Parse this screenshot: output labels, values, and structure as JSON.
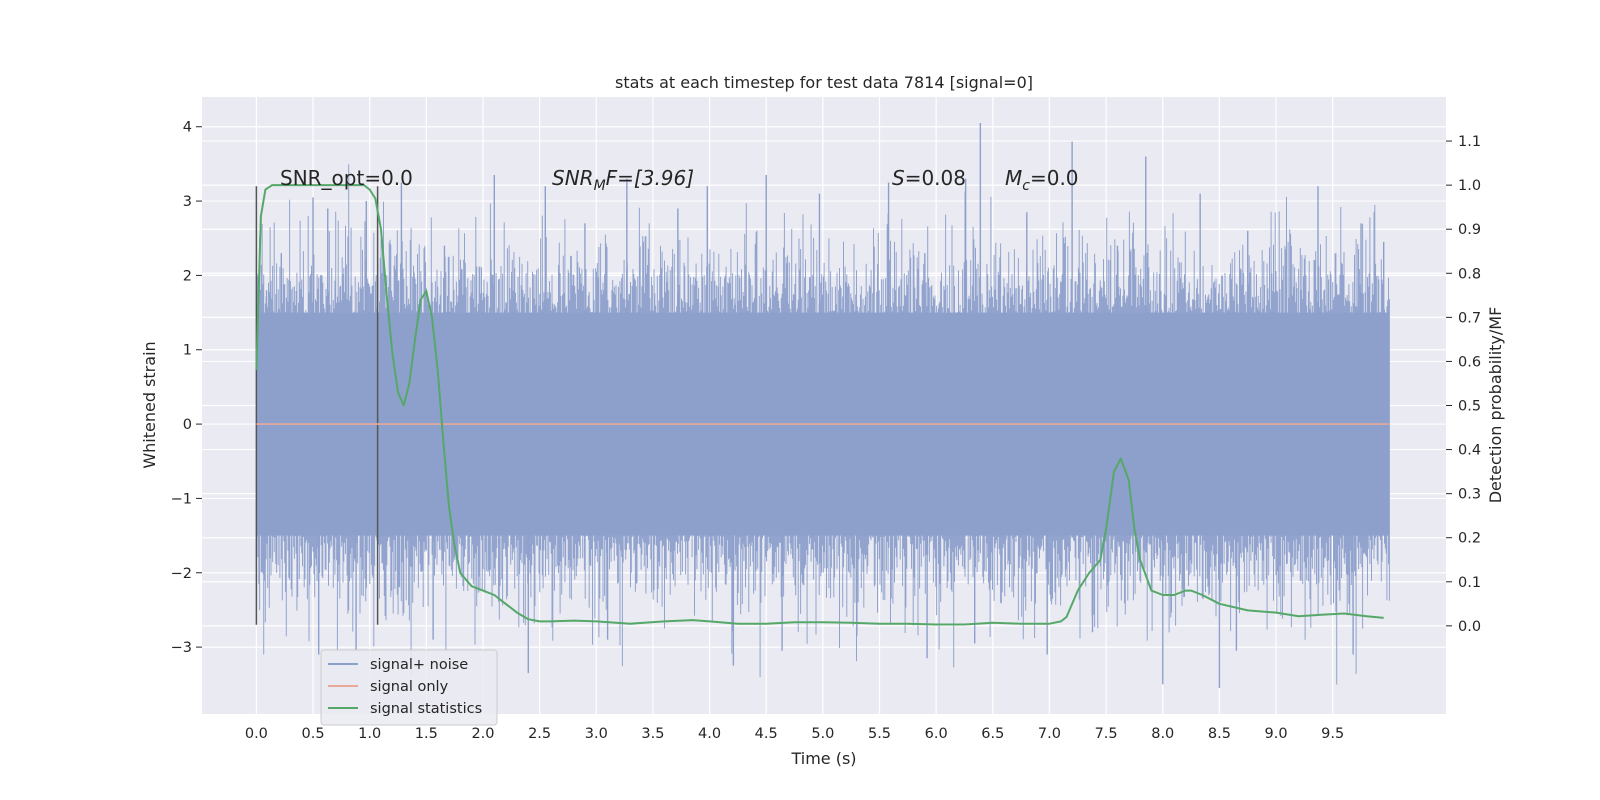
{
  "chart_data": {
    "type": "line",
    "title": "stats at each timestep for test data 7814 [signal=0]",
    "xlabel": "Time (s)",
    "ylabel": "Whitened strain",
    "ylabel_right": "Detection probability/MF",
    "xlim": [
      -0.48,
      10.5
    ],
    "ylim": [
      -3.9,
      4.4
    ],
    "ylim_right": [
      -0.2,
      1.2
    ],
    "x_ticks": [
      "0.0",
      "0.5",
      "1.0",
      "1.5",
      "2.0",
      "2.5",
      "3.0",
      "3.5",
      "4.0",
      "4.5",
      "5.0",
      "5.5",
      "6.0",
      "6.5",
      "7.0",
      "7.5",
      "8.0",
      "8.5",
      "9.0",
      "9.5"
    ],
    "y_ticks": [
      "4",
      "3",
      "2",
      "1",
      "0",
      "−1",
      "−2",
      "−3"
    ],
    "y_ticks_right": [
      "1.1",
      "1.0",
      "0.9",
      "0.8",
      "0.7",
      "0.6",
      "0.5",
      "0.4",
      "0.3",
      "0.2",
      "0.1",
      "0.0"
    ],
    "grid": true,
    "legend_position": "lower-left",
    "annotations": {
      "snr_opt": "SNR_opt=0.0",
      "snr_mf_base": "SNR",
      "snr_mf_sub": "M",
      "snr_mf_rest": "F=[3.96]",
      "s_var": "S",
      "s_rest": "=0.08",
      "mc_base": "M",
      "mc_sub": "c",
      "mc_rest": "=0.0"
    },
    "vertical_markers": {
      "x": [
        0.0,
        1.07
      ],
      "y_range": [
        -2.7,
        3.2
      ],
      "color": "#555555"
    },
    "series": [
      {
        "name": "signal+ noise",
        "color": "#8da0cb",
        "x_range": [
          0.0,
          10.0
        ],
        "band_1sigma": [
          -1.5,
          1.5
        ],
        "peak_min": -3.7,
        "peak_max": 4.05,
        "spikes": [
          {
            "x": 0.09,
            "y": 1.8
          },
          {
            "x": 0.22,
            "y": 2.3
          },
          {
            "x": 0.5,
            "y": 3.05
          },
          {
            "x": 0.63,
            "y": 2.9
          },
          {
            "x": 0.97,
            "y": 3.0
          },
          {
            "x": 1.28,
            "y": 3.25
          },
          {
            "x": 1.66,
            "y": 2.4
          },
          {
            "x": 2.1,
            "y": 3.35
          },
          {
            "x": 2.55,
            "y": 3.2
          },
          {
            "x": 2.9,
            "y": 2.7
          },
          {
            "x": 3.27,
            "y": 3.3
          },
          {
            "x": 3.72,
            "y": 2.9
          },
          {
            "x": 3.98,
            "y": 3.2
          },
          {
            "x": 4.5,
            "y": 3.35
          },
          {
            "x": 4.97,
            "y": 3.1
          },
          {
            "x": 5.58,
            "y": 3.25
          },
          {
            "x": 5.9,
            "y": 2.3
          },
          {
            "x": 6.26,
            "y": 3.3
          },
          {
            "x": 6.39,
            "y": 4.05
          },
          {
            "x": 6.8,
            "y": 2.85
          },
          {
            "x": 7.2,
            "y": 3.8
          },
          {
            "x": 7.6,
            "y": 2.4
          },
          {
            "x": 7.85,
            "y": 3.6
          },
          {
            "x": 8.33,
            "y": 3.1
          },
          {
            "x": 8.75,
            "y": 2.6
          },
          {
            "x": 9.37,
            "y": 3.2
          },
          {
            "x": 9.75,
            "y": 2.7
          },
          {
            "x": 9.95,
            "y": 2.45
          },
          {
            "x": 0.55,
            "y": -3.1
          },
          {
            "x": 0.88,
            "y": -3.05
          },
          {
            "x": 1.56,
            "y": -2.9
          },
          {
            "x": 2.4,
            "y": -3.35
          },
          {
            "x": 4.21,
            "y": -3.25
          },
          {
            "x": 4.64,
            "y": -3.05
          },
          {
            "x": 5.92,
            "y": -3.15
          },
          {
            "x": 6.34,
            "y": -2.95
          },
          {
            "x": 6.98,
            "y": -3.1
          },
          {
            "x": 7.38,
            "y": -2.8
          },
          {
            "x": 8.0,
            "y": -3.5
          },
          {
            "x": 8.5,
            "y": -3.55
          },
          {
            "x": 8.65,
            "y": -3.05
          },
          {
            "x": 9.68,
            "y": -3.1
          },
          {
            "x": 3.1,
            "y": -2.9
          },
          {
            "x": 5.3,
            "y": -2.85
          }
        ]
      },
      {
        "name": "signal only",
        "color": "#e8a99a",
        "x": [
          0.0,
          10.0
        ],
        "y": [
          0.0,
          0.0
        ]
      },
      {
        "name": "signal statistics",
        "color": "#55a868",
        "x": [
          0.0,
          0.04,
          0.08,
          0.14,
          0.22,
          0.3,
          0.5,
          0.7,
          0.85,
          0.95,
          1.0,
          1.05,
          1.1,
          1.15,
          1.2,
          1.25,
          1.3,
          1.35,
          1.4,
          1.45,
          1.5,
          1.55,
          1.6,
          1.65,
          1.7,
          1.75,
          1.8,
          1.9,
          2.0,
          2.1,
          2.2,
          2.3,
          2.4,
          2.5,
          2.6,
          2.8,
          3.0,
          3.3,
          3.6,
          3.85,
          4.0,
          4.25,
          4.5,
          4.75,
          5.0,
          5.25,
          5.5,
          5.75,
          6.0,
          6.25,
          6.5,
          6.75,
          7.0,
          7.1,
          7.15,
          7.25,
          7.35,
          7.45,
          7.5,
          7.57,
          7.63,
          7.7,
          7.75,
          7.8,
          7.9,
          8.0,
          8.1,
          8.2,
          8.25,
          8.35,
          8.5,
          8.75,
          9.0,
          9.2,
          9.4,
          9.6,
          9.8,
          9.95
        ],
        "y": [
          0.58,
          0.93,
          0.99,
          1.0,
          1.0,
          1.0,
          1.0,
          1.0,
          1.0,
          1.0,
          0.99,
          0.97,
          0.9,
          0.75,
          0.62,
          0.53,
          0.5,
          0.55,
          0.65,
          0.74,
          0.76,
          0.7,
          0.58,
          0.42,
          0.27,
          0.18,
          0.12,
          0.09,
          0.08,
          0.07,
          0.05,
          0.03,
          0.015,
          0.01,
          0.01,
          0.012,
          0.01,
          0.005,
          0.01,
          0.013,
          0.01,
          0.005,
          0.005,
          0.008,
          0.008,
          0.007,
          0.005,
          0.005,
          0.003,
          0.003,
          0.007,
          0.005,
          0.005,
          0.01,
          0.02,
          0.08,
          0.12,
          0.15,
          0.22,
          0.35,
          0.38,
          0.33,
          0.22,
          0.15,
          0.08,
          0.07,
          0.07,
          0.08,
          0.08,
          0.07,
          0.05,
          0.035,
          0.03,
          0.022,
          0.025,
          0.028,
          0.022,
          0.018
        ]
      }
    ]
  }
}
